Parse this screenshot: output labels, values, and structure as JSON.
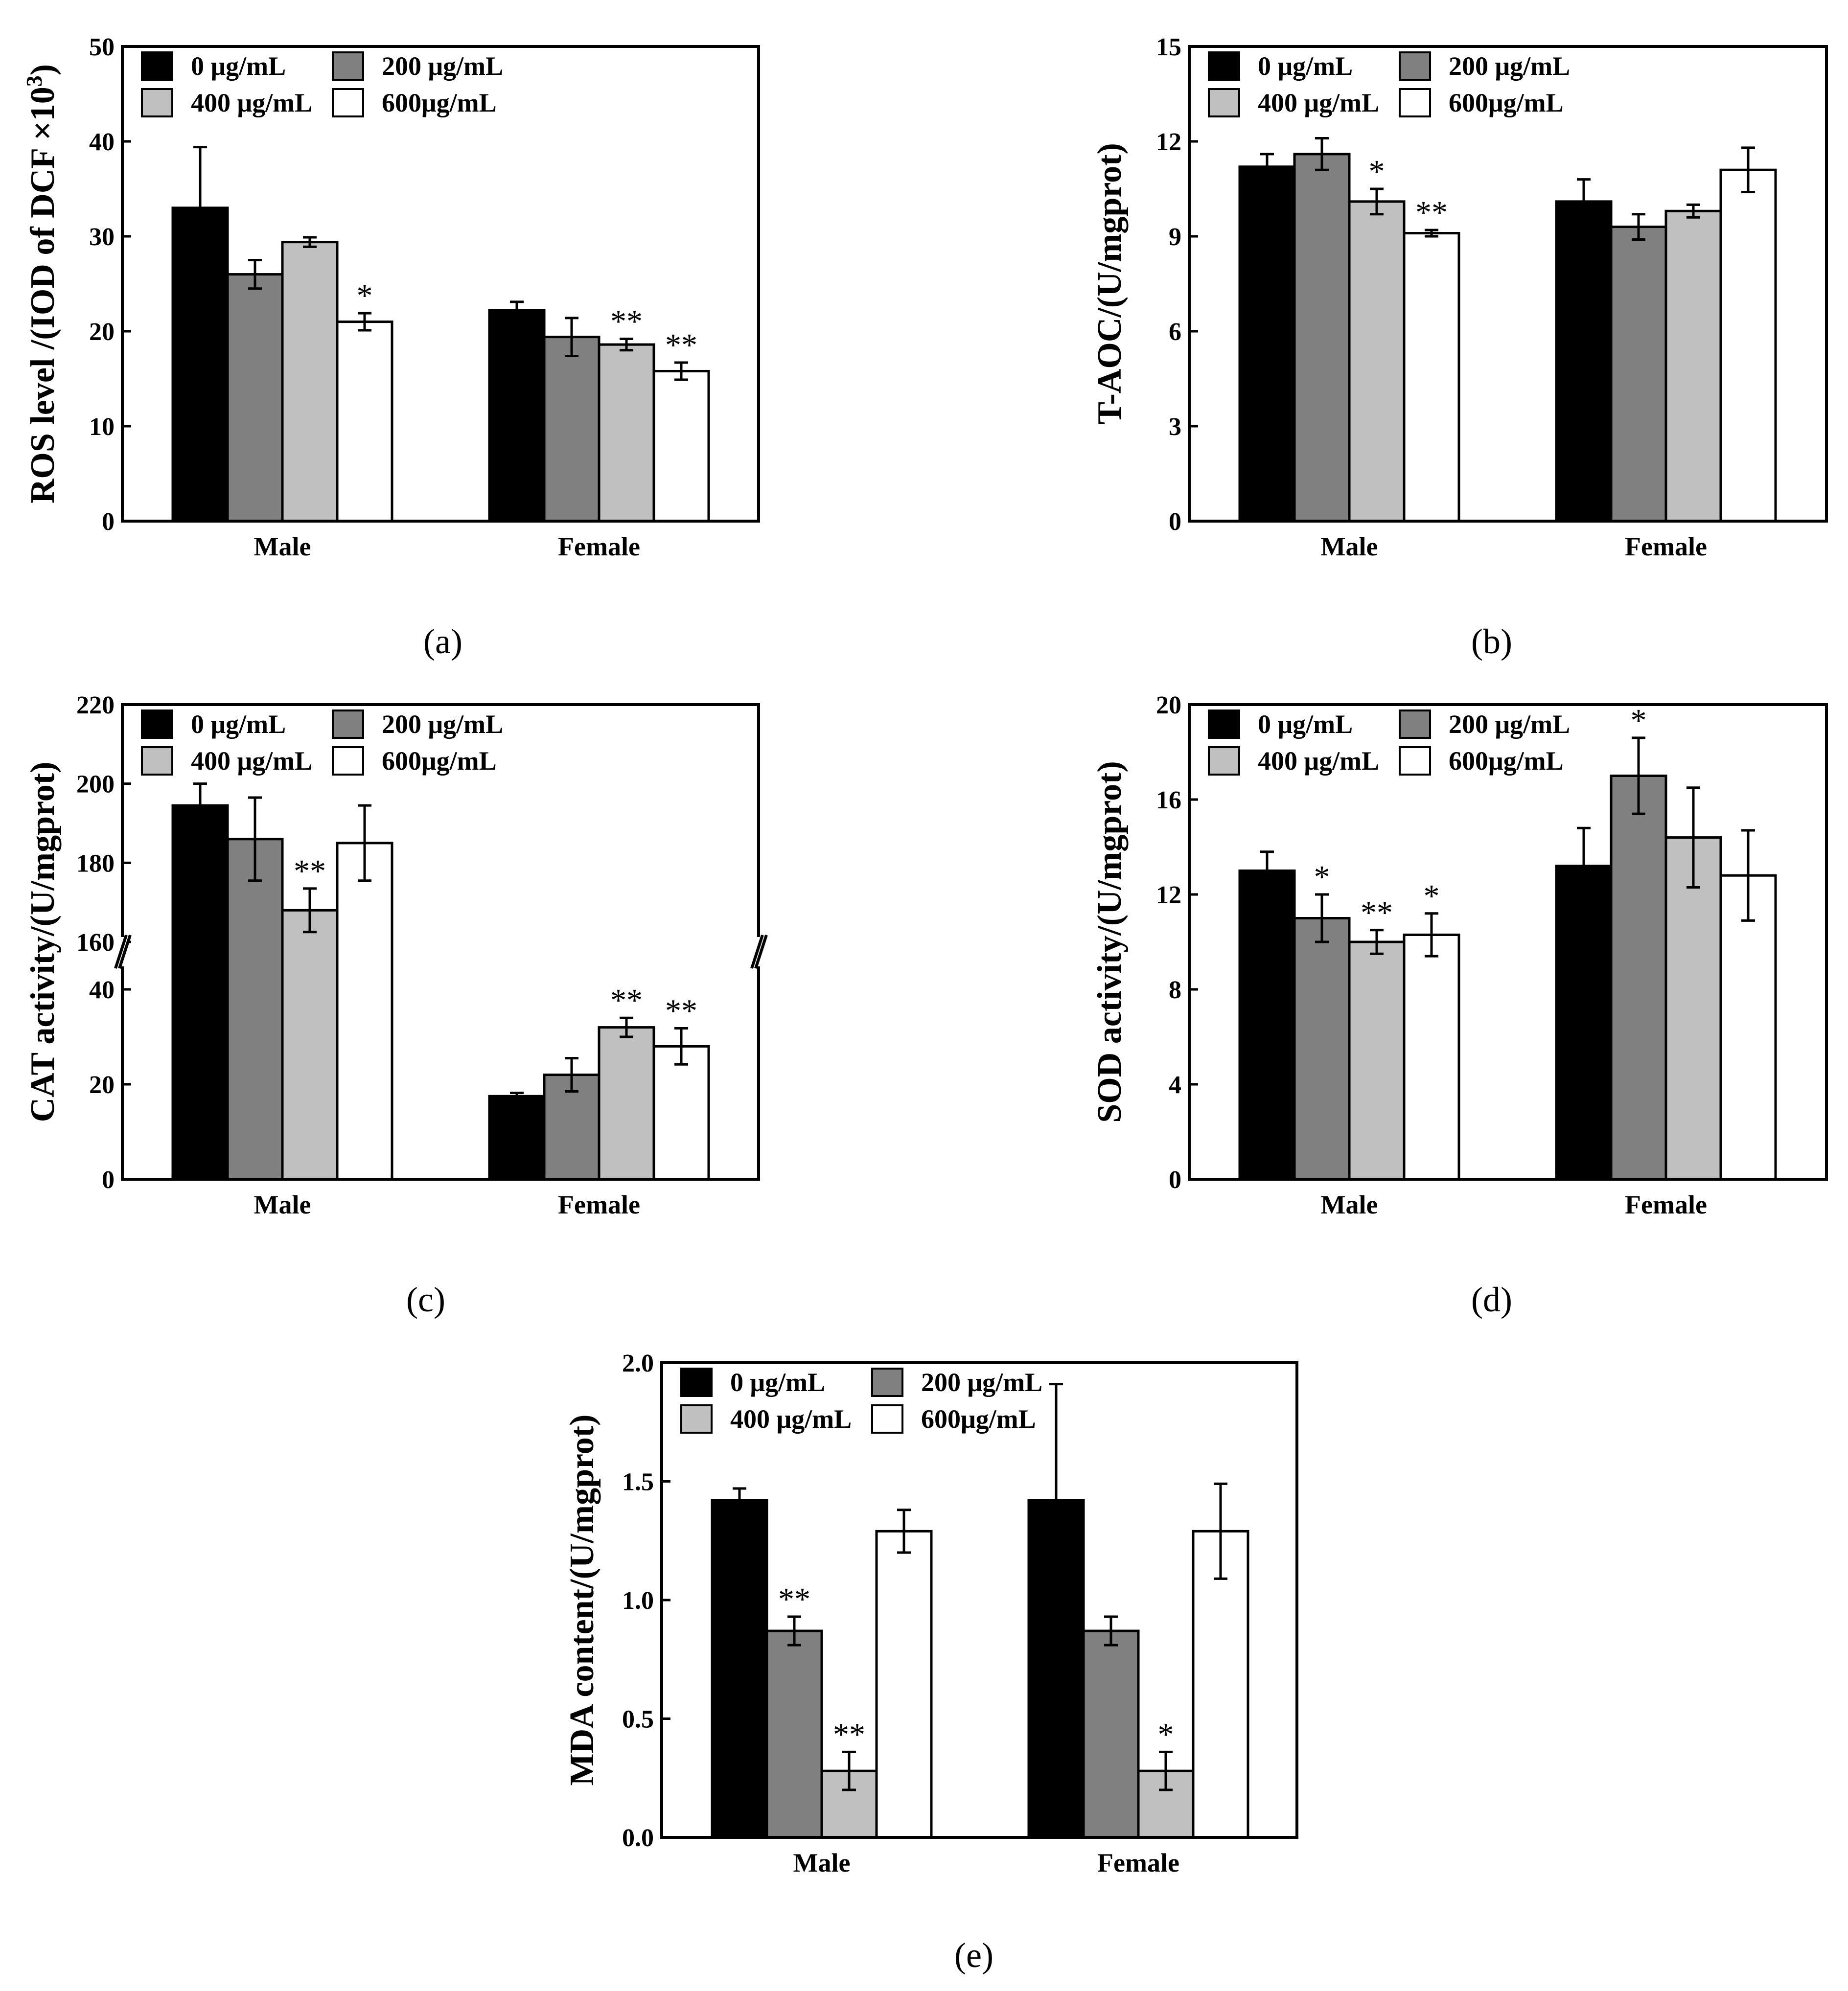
{
  "figure": {
    "legend": [
      "0 μg/mL",
      "200 μg/mL",
      "400 μg/mL",
      "600μg/mL"
    ],
    "legend_colors": [
      "#000000",
      "#808080",
      "#c0c0c0",
      "#ffffff"
    ]
  },
  "chart_data": [
    {
      "id": "a",
      "type": "bar",
      "caption": "(a)",
      "ylabel": "ROS level /(IOD of DCF ×10",
      "ylabel_sup": "3",
      "ylabel_end": ")",
      "categories": [
        "Male",
        "Female"
      ],
      "ylim": [
        0,
        50
      ],
      "yticks": [
        0,
        10,
        20,
        30,
        40,
        50
      ],
      "series": [
        {
          "name": "0 μg/mL",
          "values": [
            33.0,
            22.2
          ],
          "errors": [
            6.4,
            0.9
          ],
          "sig": [
            "",
            ""
          ]
        },
        {
          "name": "200 μg/mL",
          "values": [
            26.0,
            19.4
          ],
          "errors": [
            1.5,
            2.0
          ],
          "sig": [
            "",
            ""
          ]
        },
        {
          "name": "400 μg/mL",
          "values": [
            29.4,
            18.6
          ],
          "errors": [
            0.5,
            0.6
          ],
          "sig": [
            "",
            "**"
          ]
        },
        {
          "name": "600μg/mL",
          "values": [
            21.0,
            15.8
          ],
          "errors": [
            0.9,
            0.9
          ],
          "sig": [
            "*",
            "**"
          ]
        }
      ]
    },
    {
      "id": "b",
      "type": "bar",
      "caption": "(b)",
      "ylabel": "T-AOC/(U/mgprot)",
      "categories": [
        "Male",
        "Female"
      ],
      "ylim": [
        0,
        15
      ],
      "yticks": [
        0,
        3,
        6,
        9,
        12,
        15
      ],
      "series": [
        {
          "name": "0 μg/mL",
          "values": [
            11.2,
            10.1
          ],
          "errors": [
            0.4,
            0.7
          ],
          "sig": [
            "",
            ""
          ]
        },
        {
          "name": "200 μg/mL",
          "values": [
            11.6,
            9.3
          ],
          "errors": [
            0.5,
            0.4
          ],
          "sig": [
            "",
            ""
          ]
        },
        {
          "name": "400 μg/mL",
          "values": [
            10.1,
            9.8
          ],
          "errors": [
            0.4,
            0.2
          ],
          "sig": [
            "*",
            ""
          ]
        },
        {
          "name": "600μg/mL",
          "values": [
            9.1,
            11.1
          ],
          "errors": [
            0.1,
            0.7
          ],
          "sig": [
            "**",
            ""
          ]
        }
      ]
    },
    {
      "id": "c",
      "type": "bar",
      "caption": "(c)",
      "ylabel": "CAT  activity/(U/mgprot)",
      "categories": [
        "Male",
        "Female"
      ],
      "axis_break": {
        "lower": [
          0,
          50
        ],
        "upper": [
          160,
          220
        ]
      },
      "yticks": [
        0,
        20,
        40,
        160,
        180,
        200,
        220
      ],
      "series": [
        {
          "name": "0 μg/mL",
          "values": [
            194.5,
            17.5
          ],
          "errors": [
            5.5,
            0.7
          ],
          "sig": [
            "",
            ""
          ]
        },
        {
          "name": "200 μg/mL",
          "values": [
            186.0,
            22.0
          ],
          "errors": [
            10.5,
            3.5
          ],
          "sig": [
            "",
            ""
          ]
        },
        {
          "name": "400 μg/mL",
          "values": [
            168.0,
            32.0
          ],
          "errors": [
            5.5,
            2.0
          ],
          "sig": [
            "**",
            "**"
          ]
        },
        {
          "name": "600μg/mL",
          "values": [
            185.0,
            28.0
          ],
          "errors": [
            9.5,
            3.8
          ],
          "sig": [
            "",
            "**"
          ]
        }
      ]
    },
    {
      "id": "d",
      "type": "bar",
      "caption": "(d)",
      "ylabel": "SOD activity/(U/mgprot)",
      "categories": [
        "Male",
        "Female"
      ],
      "ylim": [
        0,
        20
      ],
      "yticks": [
        0,
        4,
        8,
        12,
        16,
        20
      ],
      "series": [
        {
          "name": "0 μg/mL",
          "values": [
            13.0,
            13.2
          ],
          "errors": [
            0.8,
            1.6
          ],
          "sig": [
            "",
            ""
          ]
        },
        {
          "name": "200 μg/mL",
          "values": [
            11.0,
            17.0
          ],
          "errors": [
            1.0,
            1.6
          ],
          "sig": [
            "*",
            "*"
          ]
        },
        {
          "name": "400 μg/mL",
          "values": [
            10.0,
            14.4
          ],
          "errors": [
            0.5,
            2.1
          ],
          "sig": [
            "**",
            ""
          ]
        },
        {
          "name": "600μg/mL",
          "values": [
            10.3,
            12.8
          ],
          "errors": [
            0.9,
            1.9
          ],
          "sig": [
            "*",
            ""
          ]
        }
      ]
    },
    {
      "id": "e",
      "type": "bar",
      "caption": "(e)",
      "ylabel": "MDA content/(U/mgprot)",
      "categories": [
        "Male",
        "Female"
      ],
      "ylim": [
        0,
        2.0
      ],
      "yticks": [
        0.0,
        0.5,
        1.0,
        1.5,
        2.0
      ],
      "ytick_labels": [
        "0.0",
        "0.5",
        "1.0",
        "1.5",
        "2.0"
      ],
      "series": [
        {
          "name": "0 μg/mL",
          "values": [
            1.42,
            1.42
          ],
          "errors": [
            0.05,
            0.49
          ],
          "sig": [
            "",
            ""
          ]
        },
        {
          "name": "200 μg/mL",
          "values": [
            0.87,
            0.87
          ],
          "errors": [
            0.06,
            0.06
          ],
          "sig": [
            "**",
            ""
          ]
        },
        {
          "name": "400 μg/mL",
          "values": [
            0.28,
            0.28
          ],
          "errors": [
            0.08,
            0.08
          ],
          "sig": [
            "**",
            "*"
          ]
        },
        {
          "name": "600μg/mL",
          "values": [
            1.29,
            1.29
          ],
          "errors": [
            0.09,
            0.2
          ],
          "sig": [
            "",
            ""
          ]
        }
      ]
    }
  ]
}
